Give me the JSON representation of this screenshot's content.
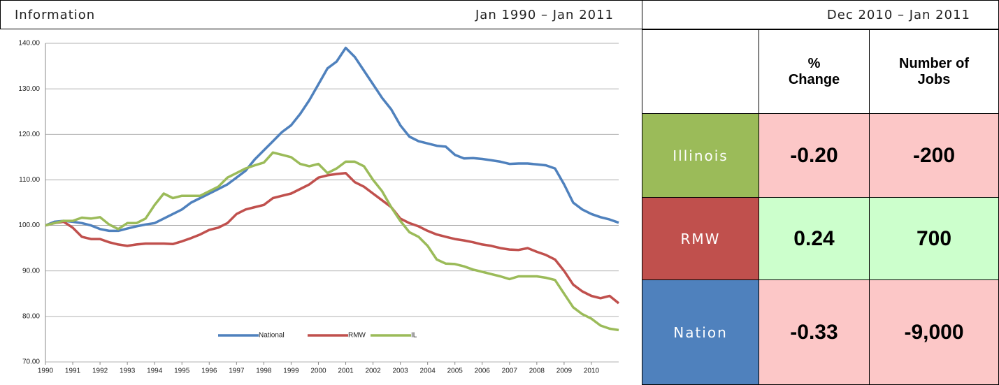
{
  "header": {
    "title": "Information",
    "chart_period": "Jan 1990 – Jan 2011",
    "table_period": "Dec 2010 – Jan 2011"
  },
  "chart_data": {
    "type": "line",
    "categories": [
      "1990",
      null,
      null,
      "1991",
      null,
      null,
      "1992",
      null,
      null,
      "1993",
      null,
      null,
      "1994",
      null,
      null,
      "1995",
      null,
      null,
      "1996",
      null,
      null,
      "1997",
      null,
      null,
      "1998",
      null,
      null,
      "1999",
      null,
      null,
      "2000",
      null,
      null,
      "2001",
      null,
      null,
      "2002",
      null,
      null,
      "2003",
      null,
      null,
      "2004",
      null,
      null,
      "2005",
      null,
      null,
      "2006",
      null,
      null,
      "2007",
      null,
      null,
      "2008",
      null,
      null,
      "2009",
      null,
      null,
      "2010",
      null,
      null,
      null
    ],
    "series": [
      {
        "name": "National",
        "color": "#4f81bd",
        "values": [
          100,
          100.8,
          101,
          100.8,
          100.5,
          100,
          99.2,
          98.8,
          98.8,
          99.3,
          99.8,
          100.2,
          100.5,
          101.5,
          102.5,
          103.5,
          105,
          106,
          107,
          108,
          109,
          110.5,
          112,
          114.5,
          116.5,
          118.5,
          120.5,
          122,
          124.5,
          127.5,
          131,
          134.5,
          136,
          139,
          137,
          134,
          131,
          128,
          125.5,
          122,
          119.5,
          118.5,
          118,
          117.5,
          117.3,
          115.5,
          114.7,
          114.8,
          114.6,
          114.3,
          114,
          113.5,
          113.6,
          113.6,
          113.4,
          113.2,
          112.5,
          109,
          105,
          103.5,
          102.5,
          101.8,
          101.3,
          100.6
        ]
      },
      {
        "name": "RMW",
        "color": "#c0504d",
        "values": [
          100,
          100.5,
          100.8,
          99.5,
          97.5,
          97,
          97,
          96.3,
          95.8,
          95.5,
          95.8,
          96,
          96,
          96,
          95.9,
          96.5,
          97.2,
          98,
          99,
          99.5,
          100.5,
          102.5,
          103.5,
          104,
          104.5,
          106,
          106.5,
          107,
          108,
          109,
          110.5,
          111,
          111.3,
          111.5,
          109.5,
          108.5,
          107,
          105.5,
          104,
          101.5,
          100.5,
          99.8,
          98.8,
          98,
          97.5,
          97,
          96.7,
          96.3,
          95.8,
          95.5,
          95,
          94.7,
          94.6,
          95,
          94.2,
          93.5,
          92.5,
          90,
          87,
          85.5,
          84.5,
          84,
          84.5,
          82.9
        ]
      },
      {
        "name": "IL",
        "color": "#9bbb59",
        "values": [
          100,
          100.5,
          101,
          101,
          101.7,
          101.5,
          101.8,
          100.2,
          99.2,
          100.5,
          100.5,
          101.5,
          104.5,
          107,
          106,
          106.5,
          106.5,
          106.5,
          107.5,
          108.5,
          110.5,
          111.5,
          112.5,
          113.2,
          113.8,
          116,
          115.5,
          115,
          113.5,
          113,
          113.5,
          111.5,
          112.5,
          114,
          114,
          113,
          110,
          107.5,
          104,
          101,
          98.5,
          97.5,
          95.5,
          92.5,
          91.6,
          91.5,
          91,
          90.3,
          89.8,
          89.3,
          88.8,
          88.2,
          88.8,
          88.8,
          88.8,
          88.5,
          88,
          85,
          82,
          80.5,
          79.5,
          78,
          77.3,
          77
        ]
      }
    ],
    "ylim": [
      70,
      140
    ],
    "yticks": [
      {
        "value": 70,
        "label": "70.00"
      },
      {
        "value": 80,
        "label": "80.00"
      },
      {
        "value": 90,
        "label": "90.00"
      },
      {
        "value": 100,
        "label": "100.00"
      },
      {
        "value": 110,
        "label": "110.00"
      },
      {
        "value": 120,
        "label": "120.00"
      },
      {
        "value": 130,
        "label": "130.00"
      },
      {
        "value": 140,
        "label": "140.00"
      }
    ],
    "grid": true
  },
  "table": {
    "columns": [
      "% Change",
      "Number of Jobs"
    ],
    "rows": [
      [
        "Illinois",
        "-0.20",
        "-200"
      ],
      [
        "RMW",
        "0.24",
        "700"
      ],
      [
        "Nation",
        "-0.33",
        "-9,000"
      ]
    ]
  }
}
